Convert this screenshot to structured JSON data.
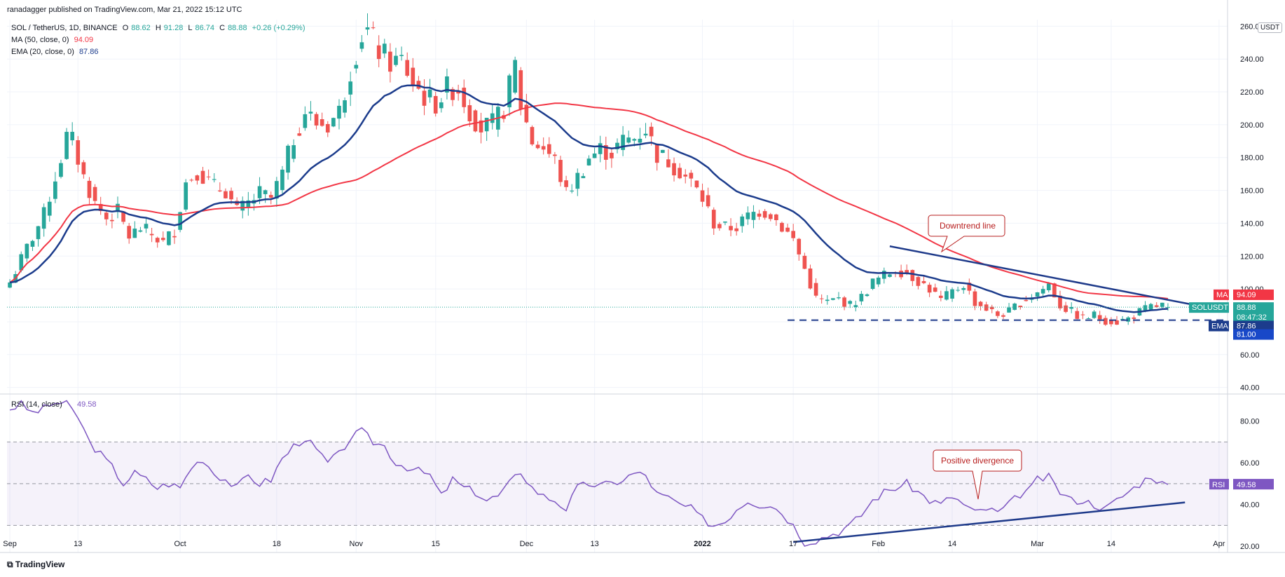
{
  "header": {
    "published": "ranadagger published on TradingView.com, Mar 21, 2022 15:12 UTC",
    "symbol": "SOL / TetherUS, 1D, BINANCE",
    "ohlc": {
      "o_label": "O",
      "o": "88.62",
      "h_label": "H",
      "h": "91.28",
      "l_label": "L",
      "l": "86.74",
      "c_label": "C",
      "c": "88.88",
      "change": "+0.26 (+0.29%)"
    },
    "ma_label": "MA (50, close, 0)",
    "ma_value": "94.09",
    "ema_label": "EMA (20, close, 0)",
    "ema_value": "87.86",
    "currency": "USDT"
  },
  "footer": {
    "logo": "TradingView"
  },
  "colors": {
    "up": "#26a69a",
    "down": "#ef5350",
    "ma": "#f23645",
    "ema": "#1c3c8c",
    "rsi": "#7e57c2",
    "trend": "#1e3a8a",
    "grid": "#f0f3fa",
    "text": "#131722"
  },
  "chart_data": [
    {
      "type": "candlestick",
      "title": "SOL / TetherUS, 1D, BINANCE",
      "ylim": [
        36,
        264
      ],
      "y_ticks": [
        "260.00",
        "240.00",
        "220.00",
        "200.00",
        "180.00",
        "160.00",
        "140.00",
        "120.00",
        "100.00",
        "80.00",
        "60.00",
        "40.00"
      ],
      "x_ticks": [
        "Sep",
        "13",
        "Oct",
        "18",
        "Nov",
        "15",
        "Dec",
        "13",
        "2022",
        "17",
        "Feb",
        "14",
        "Mar",
        "14",
        "Apr"
      ],
      "x_tick_day_index": [
        0,
        12,
        30,
        47,
        61,
        75,
        91,
        103,
        122,
        138,
        153,
        166,
        181,
        194,
        213
      ],
      "anchors_day_price": [
        [
          0,
          104
        ],
        [
          3,
          125
        ],
        [
          6,
          145
        ],
        [
          8,
          168
        ],
        [
          10,
          192
        ],
        [
          11,
          190
        ],
        [
          13,
          168
        ],
        [
          15,
          152
        ],
        [
          17,
          143
        ],
        [
          19,
          147
        ],
        [
          21,
          132
        ],
        [
          23,
          137
        ],
        [
          25,
          133
        ],
        [
          27,
          128
        ],
        [
          29,
          136
        ],
        [
          31,
          165
        ],
        [
          33,
          172
        ],
        [
          36,
          162
        ],
        [
          38,
          160
        ],
        [
          40,
          147
        ],
        [
          42,
          152
        ],
        [
          44,
          158
        ],
        [
          46,
          155
        ],
        [
          48,
          170
        ],
        [
          50,
          192
        ],
        [
          52,
          208
        ],
        [
          54,
          201
        ],
        [
          56,
          200
        ],
        [
          58,
          208
        ],
        [
          60,
          234
        ],
        [
          62,
          255
        ],
        [
          63,
          257
        ],
        [
          65,
          245
        ],
        [
          67,
          238
        ],
        [
          69,
          239
        ],
        [
          71,
          226
        ],
        [
          73,
          217
        ],
        [
          75,
          213
        ],
        [
          77,
          222
        ],
        [
          79,
          222
        ],
        [
          81,
          208
        ],
        [
          83,
          198
        ],
        [
          85,
          200
        ],
        [
          87,
          210
        ],
        [
          89,
          236
        ],
        [
          90,
          212
        ],
        [
          92,
          190
        ],
        [
          94,
          186
        ],
        [
          96,
          178
        ],
        [
          98,
          158
        ],
        [
          100,
          168
        ],
        [
          102,
          180
        ],
        [
          104,
          185
        ],
        [
          106,
          183
        ],
        [
          108,
          190
        ],
        [
          110,
          192
        ],
        [
          112,
          198
        ],
        [
          114,
          182
        ],
        [
          116,
          178
        ],
        [
          118,
          172
        ],
        [
          120,
          165
        ],
        [
          122,
          155
        ],
        [
          124,
          140
        ],
        [
          126,
          137
        ],
        [
          128,
          138
        ],
        [
          130,
          144
        ],
        [
          132,
          148
        ],
        [
          134,
          146
        ],
        [
          136,
          138
        ],
        [
          138,
          130
        ],
        [
          140,
          112
        ],
        [
          142,
          94
        ],
        [
          144,
          92
        ],
        [
          146,
          94
        ],
        [
          148,
          90
        ],
        [
          150,
          95
        ],
        [
          152,
          104
        ],
        [
          154,
          108
        ],
        [
          156,
          112
        ],
        [
          158,
          110
        ],
        [
          160,
          105
        ],
        [
          162,
          100
        ],
        [
          164,
          93
        ],
        [
          166,
          98
        ],
        [
          168,
          103
        ],
        [
          170,
          92
        ],
        [
          172,
          88
        ],
        [
          174,
          84
        ],
        [
          176,
          86
        ],
        [
          178,
          92
        ],
        [
          180,
          96
        ],
        [
          182,
          100
        ],
        [
          183,
          103
        ],
        [
          185,
          90
        ],
        [
          187,
          86
        ],
        [
          189,
          82
        ],
        [
          191,
          84
        ],
        [
          193,
          81
        ],
        [
          195,
          80
        ],
        [
          197,
          82
        ],
        [
          199,
          86
        ],
        [
          201,
          89
        ],
        [
          203,
          90
        ],
        [
          204,
          88.88
        ]
      ],
      "series": [
        {
          "name": "MA (50, close, 0)",
          "last_value": 94.09
        },
        {
          "name": "EMA (20, close, 0)",
          "last_value": 87.86
        }
      ],
      "price_labels": [
        {
          "tag": "MA",
          "value": "94.09"
        },
        {
          "tag": "SOLUSDT",
          "value": "88.88",
          "extra": "08:47:32"
        },
        {
          "tag": "EMA",
          "value": "87.86"
        },
        {
          "tag": "",
          "value": "81.00"
        }
      ],
      "support_level": 81.0,
      "downtrend_line": {
        "from": [
          155,
          126
        ],
        "to": [
          209,
          90
        ]
      },
      "annotations": [
        "Downtrend line"
      ]
    },
    {
      "type": "line",
      "title": "RSI (14, close)",
      "series_name": "RSI (14, close)",
      "last_value": "49.58",
      "ylim": [
        17,
        93
      ],
      "y_ticks": [
        "80.00",
        "60.00",
        "40.00",
        "20.00"
      ],
      "bands": {
        "upper": 70,
        "middle": 50,
        "lower": 30
      },
      "anchors_day_value": [
        [
          0,
          86
        ],
        [
          2,
          88
        ],
        [
          4,
          84
        ],
        [
          6,
          86
        ],
        [
          8,
          89
        ],
        [
          10,
          88
        ],
        [
          12,
          82
        ],
        [
          14,
          70
        ],
        [
          16,
          64
        ],
        [
          18,
          58
        ],
        [
          20,
          50
        ],
        [
          22,
          55
        ],
        [
          24,
          52
        ],
        [
          26,
          48
        ],
        [
          28,
          50
        ],
        [
          30,
          48
        ],
        [
          32,
          58
        ],
        [
          34,
          62
        ],
        [
          36,
          55
        ],
        [
          38,
          52
        ],
        [
          40,
          48
        ],
        [
          42,
          54
        ],
        [
          44,
          50
        ],
        [
          46,
          52
        ],
        [
          48,
          62
        ],
        [
          50,
          68
        ],
        [
          52,
          72
        ],
        [
          54,
          66
        ],
        [
          56,
          60
        ],
        [
          58,
          64
        ],
        [
          60,
          72
        ],
        [
          62,
          75
        ],
        [
          64,
          70
        ],
        [
          66,
          68
        ],
        [
          68,
          60
        ],
        [
          70,
          58
        ],
        [
          72,
          56
        ],
        [
          74,
          54
        ],
        [
          76,
          44
        ],
        [
          78,
          52
        ],
        [
          80,
          48
        ],
        [
          82,
          46
        ],
        [
          84,
          42
        ],
        [
          86,
          44
        ],
        [
          88,
          50
        ],
        [
          90,
          56
        ],
        [
          92,
          48
        ],
        [
          94,
          44
        ],
        [
          96,
          42
        ],
        [
          98,
          38
        ],
        [
          100,
          48
        ],
        [
          102,
          50
        ],
        [
          104,
          49
        ],
        [
          106,
          50
        ],
        [
          108,
          52
        ],
        [
          110,
          55
        ],
        [
          112,
          54
        ],
        [
          114,
          45
        ],
        [
          116,
          43
        ],
        [
          118,
          40
        ],
        [
          120,
          38
        ],
        [
          122,
          33
        ],
        [
          124,
          30
        ],
        [
          126,
          32
        ],
        [
          128,
          38
        ],
        [
          130,
          42
        ],
        [
          132,
          40
        ],
        [
          134,
          40
        ],
        [
          136,
          36
        ],
        [
          138,
          30
        ],
        [
          140,
          22
        ],
        [
          142,
          23
        ],
        [
          144,
          25
        ],
        [
          146,
          27
        ],
        [
          148,
          30
        ],
        [
          150,
          35
        ],
        [
          152,
          42
        ],
        [
          154,
          46
        ],
        [
          156,
          48
        ],
        [
          158,
          50
        ],
        [
          160,
          46
        ],
        [
          162,
          42
        ],
        [
          164,
          40
        ],
        [
          166,
          44
        ],
        [
          168,
          40
        ],
        [
          170,
          36
        ],
        [
          172,
          38
        ],
        [
          174,
          36
        ],
        [
          176,
          40
        ],
        [
          178,
          45
        ],
        [
          180,
          48
        ],
        [
          181,
          52
        ],
        [
          183,
          53
        ],
        [
          185,
          46
        ],
        [
          187,
          42
        ],
        [
          189,
          42
        ],
        [
          191,
          40
        ],
        [
          193,
          38
        ],
        [
          195,
          42
        ],
        [
          197,
          46
        ],
        [
          199,
          50
        ],
        [
          201,
          54
        ],
        [
          203,
          50
        ],
        [
          204,
          49.58
        ]
      ],
      "support_line": {
        "from": [
          138,
          22
        ],
        "to": [
          207,
          41
        ]
      },
      "annotations": [
        "Positive divergence"
      ]
    }
  ]
}
